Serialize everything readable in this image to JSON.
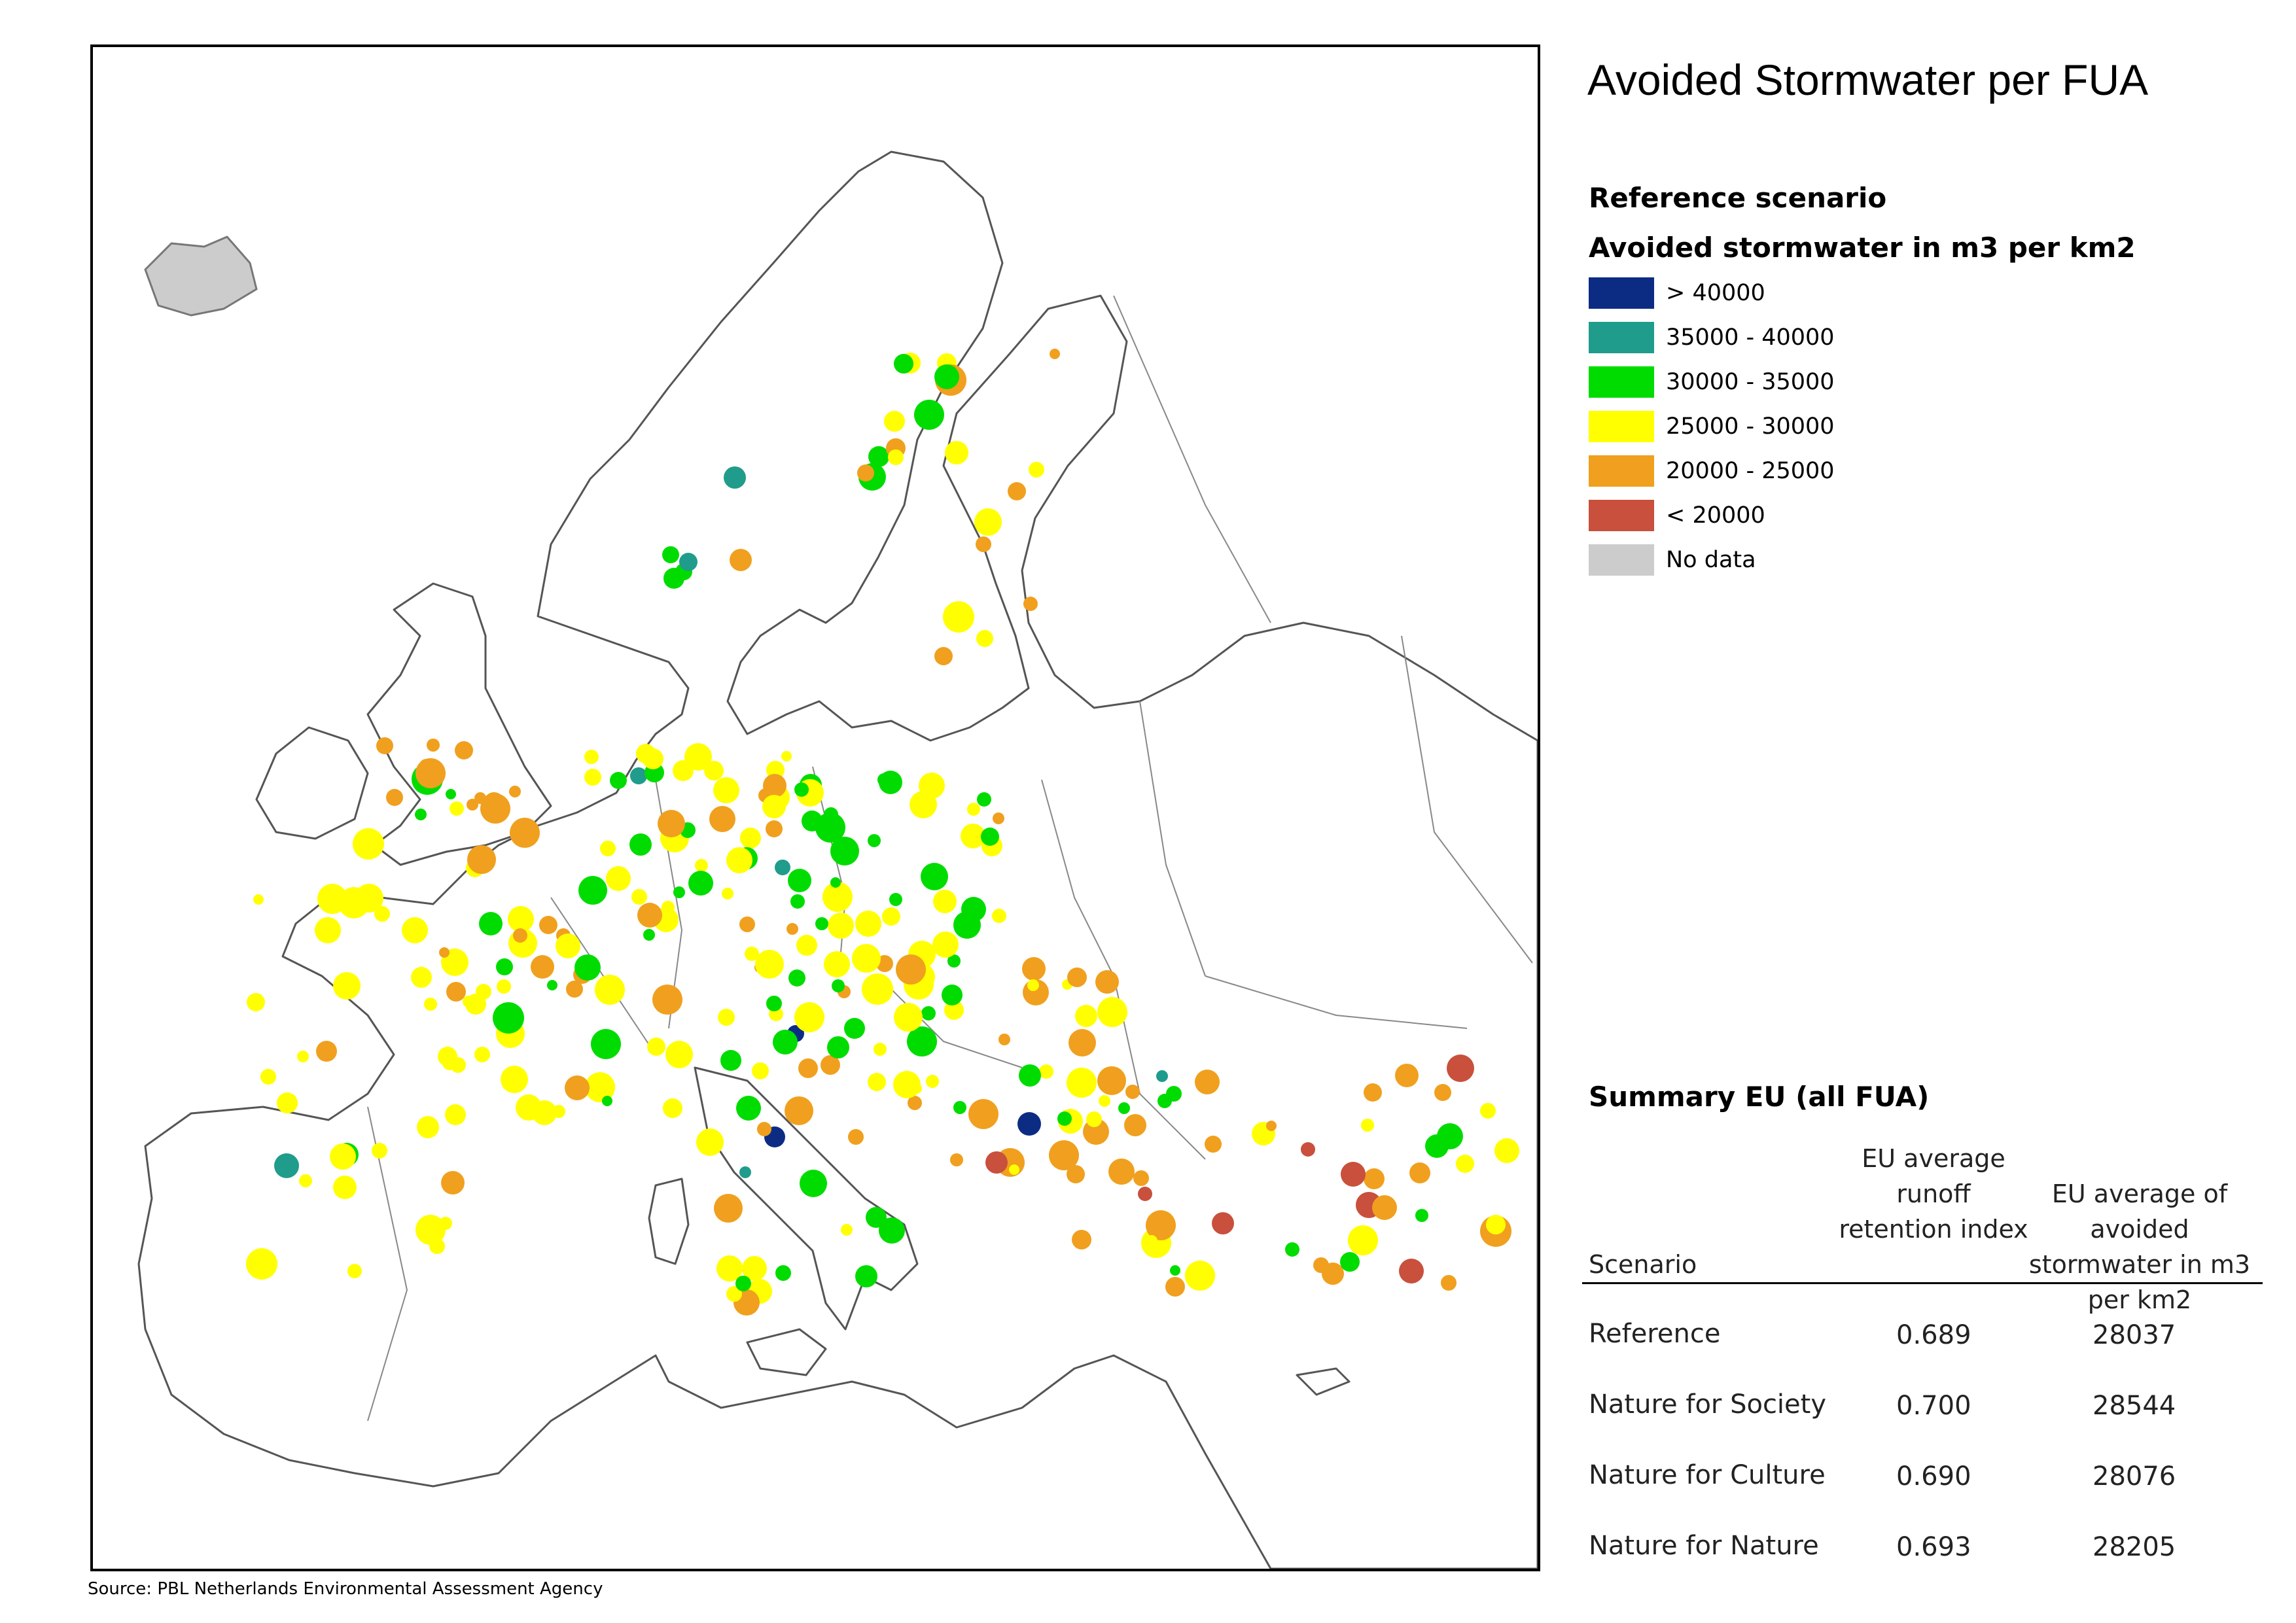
{
  "title": "Avoided Stormwater per FUA",
  "scenario_heading": "Reference scenario",
  "legend_heading": "Avoided stormwater in m3 per km2",
  "legend": [
    {
      "label": "> 40000",
      "color": "#0c2c84"
    },
    {
      "label": "35000 - 40000",
      "color": "#1f9c8c"
    },
    {
      "label": "30000 - 35000",
      "color": "#00dc00"
    },
    {
      "label": "25000 - 30000",
      "color": "#ffff00"
    },
    {
      "label": "20000 - 25000",
      "color": "#f0a01e"
    },
    {
      "label": "< 20000",
      "color": "#c8503c"
    },
    {
      "label": "No data",
      "color": "#cccccc"
    }
  ],
  "summary": {
    "heading": "Summary EU (all FUA)",
    "headers": {
      "scenario": "Scenario",
      "retention": "EU average runoff retention index",
      "avoided": "EU average of avoided stormwater in m3 per km2"
    },
    "rows": [
      {
        "scenario": "Reference",
        "retention": "0.689",
        "avoided": "28037"
      },
      {
        "scenario": "Nature for Society",
        "retention": "0.700",
        "avoided": "28544"
      },
      {
        "scenario": "Nature for Culture",
        "retention": "0.690",
        "avoided": "28076"
      },
      {
        "scenario": "Nature for Nature",
        "retention": "0.693",
        "avoided": "28205"
      }
    ]
  },
  "source": "Source: PBL Netherlands Environmental Assessment Agency"
}
